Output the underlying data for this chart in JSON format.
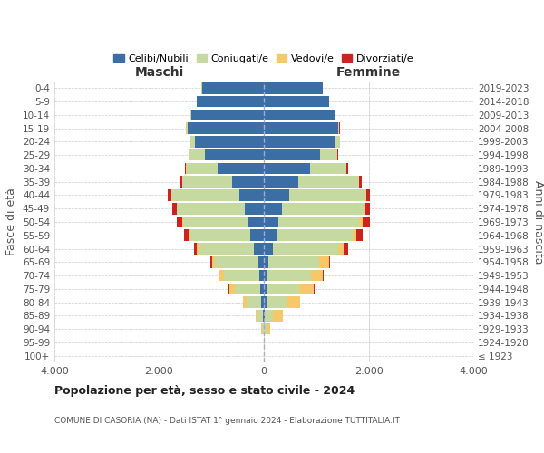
{
  "age_groups": [
    "100+",
    "95-99",
    "90-94",
    "85-89",
    "80-84",
    "75-79",
    "70-74",
    "65-69",
    "60-64",
    "55-59",
    "50-54",
    "45-49",
    "40-44",
    "35-39",
    "30-34",
    "25-29",
    "20-24",
    "15-19",
    "10-14",
    "5-9",
    "0-4"
  ],
  "birth_years": [
    "≤ 1923",
    "1924-1928",
    "1929-1933",
    "1934-1938",
    "1939-1943",
    "1944-1948",
    "1949-1953",
    "1954-1958",
    "1959-1963",
    "1964-1968",
    "1969-1973",
    "1974-1978",
    "1979-1983",
    "1984-1988",
    "1989-1993",
    "1994-1998",
    "1999-2003",
    "2004-2008",
    "2009-2013",
    "2014-2018",
    "2019-2023"
  ],
  "males": {
    "celibi": [
      2,
      2,
      8,
      25,
      45,
      70,
      90,
      110,
      190,
      260,
      290,
      360,
      470,
      610,
      880,
      1130,
      1320,
      1460,
      1390,
      1280,
      1180
    ],
    "coniugati": [
      2,
      4,
      35,
      90,
      280,
      480,
      680,
      820,
      1050,
      1150,
      1250,
      1300,
      1300,
      950,
      600,
      300,
      80,
      20,
      8,
      4,
      8
    ],
    "vedovi": [
      0,
      2,
      12,
      45,
      75,
      110,
      75,
      55,
      35,
      20,
      15,
      8,
      4,
      4,
      4,
      4,
      4,
      4,
      0,
      0,
      4
    ],
    "divorziati": [
      0,
      0,
      0,
      4,
      4,
      8,
      12,
      28,
      65,
      95,
      115,
      75,
      55,
      45,
      25,
      8,
      4,
      4,
      0,
      0,
      0
    ]
  },
  "females": {
    "nubili": [
      2,
      2,
      8,
      25,
      45,
      55,
      75,
      95,
      170,
      240,
      270,
      350,
      490,
      660,
      880,
      1080,
      1370,
      1420,
      1350,
      1250,
      1130
    ],
    "coniugate": [
      2,
      8,
      45,
      140,
      380,
      620,
      820,
      960,
      1250,
      1450,
      1550,
      1550,
      1450,
      1150,
      700,
      320,
      80,
      20,
      8,
      4,
      4
    ],
    "vedove": [
      4,
      12,
      75,
      190,
      260,
      280,
      230,
      185,
      110,
      75,
      65,
      35,
      18,
      8,
      4,
      4,
      4,
      4,
      0,
      0,
      0
    ],
    "divorziate": [
      0,
      0,
      0,
      4,
      8,
      12,
      18,
      28,
      75,
      115,
      135,
      95,
      65,
      45,
      25,
      8,
      4,
      4,
      0,
      0,
      0
    ]
  },
  "colors": {
    "celibi_nubili": "#3a6ea5",
    "coniugati": "#c5d9a0",
    "vedovi": "#f5c96a",
    "divorziati": "#cc2222"
  },
  "xlim": 4000,
  "xticks": [
    -4000,
    -2000,
    0,
    2000,
    4000
  ],
  "xticklabels": [
    "4.000",
    "2.000",
    "0",
    "2.000",
    "4.000"
  ],
  "title": "Popolazione per età, sesso e stato civile - 2024",
  "subtitle": "COMUNE DI CASORIA (NA) - Dati ISTAT 1° gennaio 2024 - Elaborazione TUTTITALIA.IT",
  "legend_labels": [
    "Celibi/Nubili",
    "Coniugati/e",
    "Vedovi/e",
    "Divorziati/e"
  ],
  "ylabel_left": "Fasce di età",
  "ylabel_right": "Anni di nascita",
  "header_left": "Maschi",
  "header_right": "Femmine",
  "bg_color": "#ffffff",
  "grid_color": "#cccccc"
}
